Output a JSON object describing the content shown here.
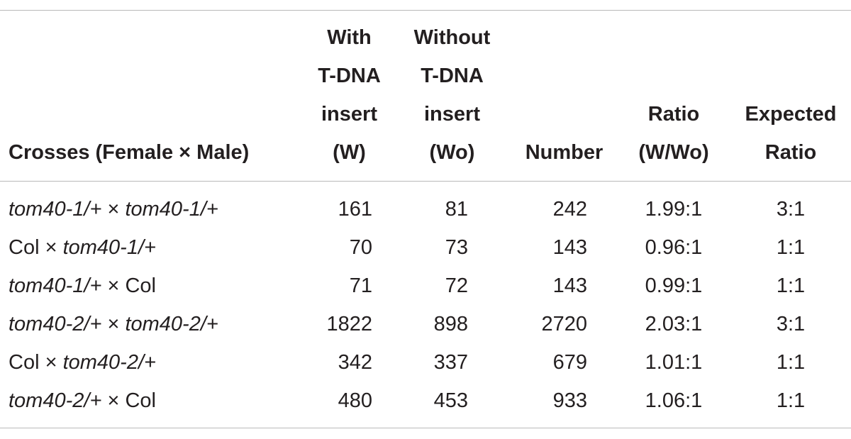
{
  "table": {
    "headers": {
      "crosses": "Crosses (Female × Male)",
      "with_insert": [
        "With",
        "T-DNA",
        "insert",
        "(W)"
      ],
      "without_insert": [
        "Without",
        "T-DNA",
        "insert",
        "(Wo)"
      ],
      "number": "Number",
      "ratio": [
        "Ratio",
        "(W/Wo)"
      ],
      "expected_ratio": [
        "Expected",
        "Ratio"
      ]
    },
    "rows": [
      {
        "female": "tom40-1/+",
        "female_italic": true,
        "x": "×",
        "male": "tom40-1/+",
        "male_italic": true,
        "w": "161",
        "wo": "81",
        "number": "242",
        "ratio": "1.99:1",
        "expected": "3:1"
      },
      {
        "female": "Col",
        "female_italic": false,
        "x": "×",
        "male": "tom40-1/+",
        "male_italic": true,
        "w": "70",
        "wo": "73",
        "number": "143",
        "ratio": "0.96:1",
        "expected": "1:1"
      },
      {
        "female": "tom40-1/+",
        "female_italic": true,
        "x": "×",
        "male": "Col",
        "male_italic": false,
        "w": "71",
        "wo": "72",
        "number": "143",
        "ratio": "0.99:1",
        "expected": "1:1"
      },
      {
        "female": "tom40-2/+",
        "female_italic": true,
        "x": "×",
        "male": "tom40-2/+",
        "male_italic": true,
        "w": "1822",
        "wo": "898",
        "number": "2720",
        "ratio": "2.03:1",
        "expected": "3:1"
      },
      {
        "female": "Col",
        "female_italic": false,
        "x": "×",
        "male": "tom40-2/+",
        "male_italic": true,
        "w": "342",
        "wo": "337",
        "number": "679",
        "ratio": "1.01:1",
        "expected": "1:1"
      },
      {
        "female": "tom40-2/+",
        "female_italic": true,
        "x": "×",
        "male": "Col",
        "male_italic": false,
        "w": "480",
        "wo": "453",
        "number": "933",
        "ratio": "1.06:1",
        "expected": "1:1"
      }
    ]
  },
  "colors": {
    "text": "#231f20",
    "rule": "#b9b9b9"
  }
}
